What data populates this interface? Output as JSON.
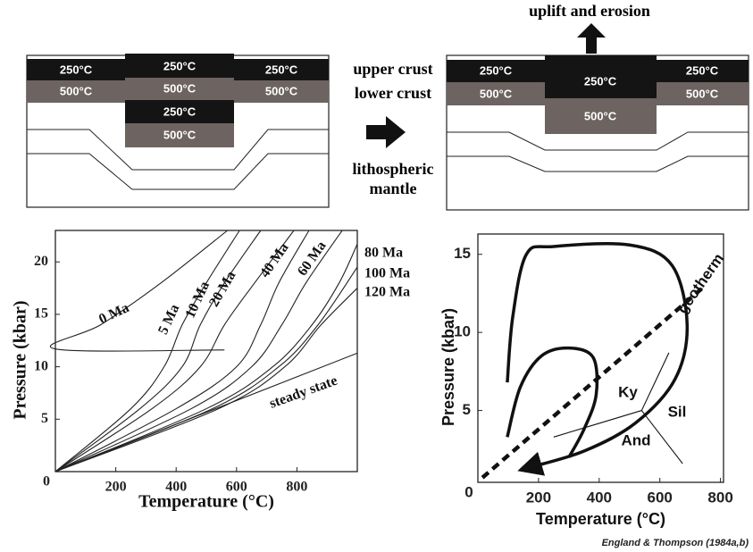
{
  "diagrams": [
    {
      "labels": [
        "250°C",
        "500°C",
        "250°C",
        "500°C",
        "250°C",
        "500°C",
        "250°C",
        "500°C"
      ]
    },
    {
      "title": "uplift and erosion",
      "labels": [
        "250°C",
        "500°C",
        "250°C",
        "500°C",
        "250°C",
        "500°C"
      ]
    }
  ],
  "layers": [
    "upper crust",
    "lower crust",
    "lithospheric mantle"
  ],
  "credit": "England & Thompson (1984a,b)",
  "chart_data": [
    {
      "type": "line",
      "xlabel": "Temperature (°C)",
      "ylabel": "Pressure (kbar)",
      "xlim": [
        0,
        1000
      ],
      "ylim": [
        0,
        23
      ],
      "xticks": [
        0,
        200,
        400,
        600,
        800
      ],
      "yticks": [
        5,
        10,
        15,
        20
      ],
      "series": [
        {
          "name": "0 Ma",
          "color": "#222222",
          "x": [
            560,
            0,
            150,
            350,
            570
          ],
          "values": [
            11.6,
            11.7,
            14,
            18,
            23
          ]
        },
        {
          "name": "5 Ma",
          "color": "#222222",
          "x": [
            0,
            250,
            360,
            420,
            500,
            610
          ],
          "values": [
            0,
            6,
            10,
            14,
            18,
            23
          ]
        },
        {
          "name": "10 Ma",
          "color": "#222222",
          "x": [
            0,
            280,
            420,
            480,
            560,
            680
          ],
          "values": [
            0,
            6,
            10,
            14,
            18,
            23
          ]
        },
        {
          "name": "20 Ma",
          "color": "#222222",
          "x": [
            0,
            320,
            480,
            560,
            660,
            790
          ],
          "values": [
            0,
            6,
            10,
            14,
            18,
            23
          ]
        },
        {
          "name": "40 Ma",
          "color": "#222222",
          "x": [
            0,
            400,
            600,
            680,
            740,
            840
          ],
          "values": [
            0,
            6,
            10,
            14,
            18,
            23
          ]
        },
        {
          "name": "60 Ma",
          "color": "#222222",
          "x": [
            0,
            450,
            650,
            750,
            830,
            950
          ],
          "values": [
            0,
            6,
            10,
            14,
            18,
            23
          ]
        },
        {
          "name": "80 Ma",
          "color": "#222222",
          "x": [
            0,
            500,
            720,
            850,
            940,
            1000
          ],
          "values": [
            0,
            6,
            10,
            14,
            18,
            21.7
          ]
        },
        {
          "name": "100 Ma",
          "color": "#222222",
          "x": [
            0,
            520,
            740,
            870,
            1000
          ],
          "values": [
            0,
            6,
            10,
            14,
            19.5
          ]
        },
        {
          "name": "120 Ma",
          "color": "#222222",
          "x": [
            0,
            540,
            760,
            880,
            1000
          ],
          "values": [
            0,
            6,
            10,
            14,
            17.5
          ]
        },
        {
          "name": "steady state",
          "color": "#222222",
          "x": [
            0,
            1000
          ],
          "values": [
            0,
            11.3
          ]
        }
      ]
    },
    {
      "type": "line",
      "xlabel": "Temperature (°C)",
      "ylabel": "Pressure (kbar)",
      "xlim": [
        0,
        810
      ],
      "ylim": [
        0.4,
        16.3
      ],
      "xticks": [
        0,
        200,
        400,
        600,
        800
      ],
      "yticks": [
        5,
        10,
        15
      ],
      "annotations": [
        "Ky",
        "Sil",
        "And"
      ],
      "series": [
        {
          "name": "geotherm",
          "color": "#111111",
          "dashed": true,
          "x": [
            15,
            750
          ],
          "values": [
            0.7,
            13
          ]
        },
        {
          "color": "#111111",
          "bold": true,
          "arrow": true,
          "x": [
            97,
            115,
            160,
            250,
            500,
            640,
            690,
            650,
            520,
            350,
            160
          ],
          "values": [
            6.8,
            11,
            15,
            15.5,
            15.6,
            14.3,
            10.5,
            7,
            4.2,
            2.4,
            1.3
          ]
        },
        {
          "color": "#111111",
          "bold": true,
          "x": [
            97,
            140,
            210,
            300,
            380,
            390,
            350,
            300
          ],
          "values": [
            3.3,
            6.5,
            8.5,
            9,
            8.4,
            6,
            3.8,
            2
          ]
        },
        {
          "color": "#111111",
          "x": [
            540,
            630
          ],
          "values": [
            5,
            8.7
          ]
        },
        {
          "color": "#111111",
          "x": [
            540,
            675
          ],
          "values": [
            5,
            1.6
          ]
        },
        {
          "color": "#111111",
          "x": [
            540,
            250
          ],
          "values": [
            5,
            3.3
          ]
        }
      ]
    }
  ]
}
